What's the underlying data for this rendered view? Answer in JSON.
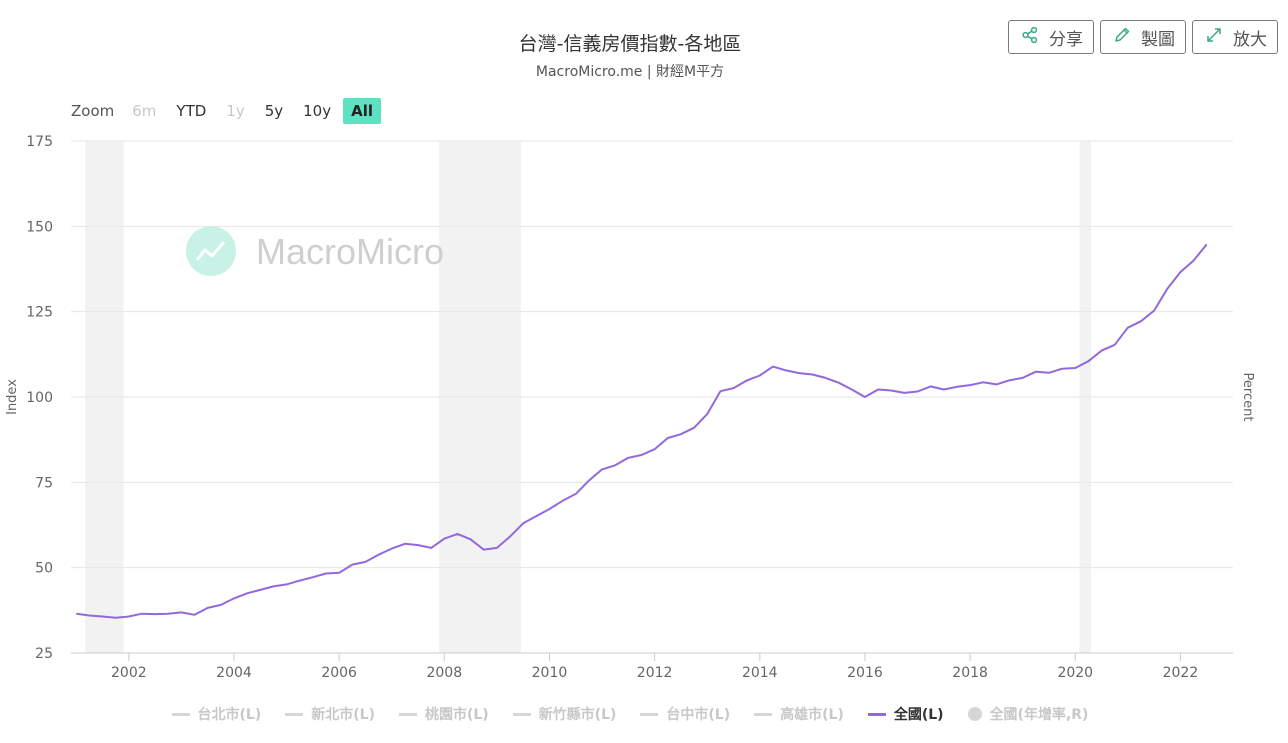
{
  "header": {
    "title": "台灣-信義房價指數-各地區",
    "subtitle": "MacroMicro.me | 財經M平方"
  },
  "buttons": [
    {
      "label": "分享",
      "icon": "share-icon"
    },
    {
      "label": "製圖",
      "icon": "pencil-icon"
    },
    {
      "label": "放大",
      "icon": "expand-icon"
    }
  ],
  "zoom": {
    "label": "Zoom",
    "options": [
      {
        "label": "6m",
        "state": "disabled"
      },
      {
        "label": "YTD",
        "state": "normal"
      },
      {
        "label": "1y",
        "state": "disabled"
      },
      {
        "label": "5y",
        "state": "normal"
      },
      {
        "label": "10y",
        "state": "normal"
      },
      {
        "label": "All",
        "state": "selected"
      }
    ]
  },
  "watermark": "MacroMicro",
  "colors": {
    "line": "#9268dc",
    "accent": "#5de2c1",
    "recession": "#f2f2f2",
    "grid": "#e6e6e6"
  },
  "chart_data": {
    "type": "line",
    "title": "台灣-信義房價指數-各地區",
    "subtitle": "MacroMicro.me | 財經M平方",
    "ylabel": "Index",
    "y2label": "Percent",
    "ylim": [
      25,
      175
    ],
    "yticks": [
      25,
      50,
      75,
      100,
      125,
      150,
      175
    ],
    "xlim": [
      2000.9,
      2023.0
    ],
    "xticks": [
      2002,
      2004,
      2006,
      2008,
      2010,
      2012,
      2014,
      2016,
      2018,
      2020,
      2022
    ],
    "grid": true,
    "legend_position": "bottom",
    "shaded_periods": [
      [
        2001.17,
        2001.9
      ],
      [
        2007.9,
        2009.46
      ],
      [
        2020.08,
        2020.3
      ]
    ],
    "series": [
      {
        "name": "全國(L)",
        "active": true,
        "x": [
          2001.0,
          2001.25,
          2001.5,
          2001.75,
          2002.0,
          2002.25,
          2002.5,
          2002.75,
          2003.0,
          2003.25,
          2003.5,
          2003.75,
          2004.0,
          2004.25,
          2004.5,
          2004.75,
          2005.0,
          2005.25,
          2005.5,
          2005.75,
          2006.0,
          2006.25,
          2006.5,
          2006.75,
          2007.0,
          2007.25,
          2007.5,
          2007.75,
          2008.0,
          2008.25,
          2008.5,
          2008.75,
          2009.0,
          2009.25,
          2009.5,
          2009.75,
          2010.0,
          2010.25,
          2010.5,
          2010.75,
          2011.0,
          2011.25,
          2011.5,
          2011.75,
          2012.0,
          2012.25,
          2012.5,
          2012.75,
          2013.0,
          2013.25,
          2013.5,
          2013.75,
          2014.0,
          2014.25,
          2014.5,
          2014.75,
          2015.0,
          2015.25,
          2015.5,
          2015.75,
          2016.0,
          2016.25,
          2016.5,
          2016.75,
          2017.0,
          2017.25,
          2017.5,
          2017.75,
          2018.0,
          2018.25,
          2018.5,
          2018.75,
          2019.0,
          2019.25,
          2019.5,
          2019.75,
          2020.0,
          2020.25,
          2020.5,
          2020.75,
          2021.0,
          2021.25,
          2021.5,
          2021.75,
          2022.0,
          2022.25,
          2022.5
        ],
        "values": [
          36.5,
          36.0,
          35.7,
          35.3,
          35.7,
          36.5,
          36.4,
          36.5,
          36.9,
          36.2,
          38.2,
          39.1,
          41.0,
          42.5,
          43.5,
          44.5,
          45.1,
          46.2,
          47.2,
          48.3,
          48.5,
          50.9,
          51.7,
          53.8,
          55.6,
          57.0,
          56.6,
          55.8,
          58.5,
          59.9,
          58.3,
          55.3,
          55.8,
          59.1,
          63.0,
          65.1,
          67.2,
          69.6,
          71.6,
          75.5,
          78.8,
          80.0,
          82.2,
          83.0,
          84.7,
          88.0,
          89.1,
          91.0,
          95.0,
          101.7,
          102.6,
          104.8,
          106.3,
          108.9,
          107.8,
          107.0,
          106.6,
          105.6,
          104.2,
          102.2,
          100.0,
          102.2,
          101.9,
          101.2,
          101.6,
          103.1,
          102.2,
          103.0,
          103.5,
          104.3,
          103.7,
          104.9,
          105.6,
          107.4,
          107.1,
          108.3,
          108.5,
          110.5,
          113.6,
          115.3,
          120.3,
          122.2,
          125.3,
          131.7,
          136.6,
          140.0,
          144.7
        ]
      }
    ]
  },
  "legend": [
    {
      "label": "台北市(L)",
      "active": false,
      "marker": "line"
    },
    {
      "label": "新北市(L)",
      "active": false,
      "marker": "line"
    },
    {
      "label": "桃園市(L)",
      "active": false,
      "marker": "line"
    },
    {
      "label": "新竹縣市(L)",
      "active": false,
      "marker": "line"
    },
    {
      "label": "台中市(L)",
      "active": false,
      "marker": "line"
    },
    {
      "label": "高雄市(L)",
      "active": false,
      "marker": "line"
    },
    {
      "label": "全國(L)",
      "active": true,
      "marker": "line"
    },
    {
      "label": "全國(年增率,R)",
      "active": false,
      "marker": "dot"
    }
  ]
}
